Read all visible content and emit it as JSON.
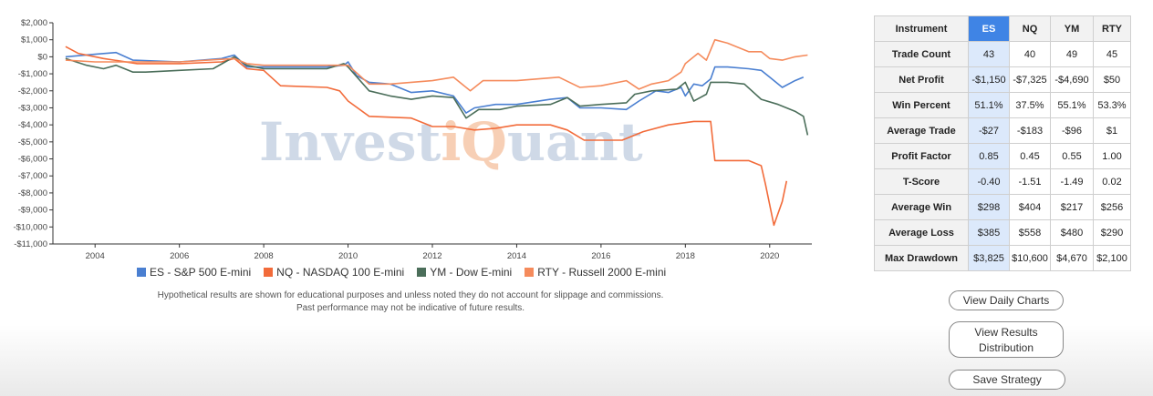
{
  "chart_data": {
    "type": "line",
    "title": "",
    "xlabel": "",
    "ylabel": "",
    "xlim": [
      2003.0,
      2021.0
    ],
    "ylim": [
      -11000,
      2000
    ],
    "x_ticks": [
      2004,
      2006,
      2008,
      2010,
      2012,
      2014,
      2016,
      2018,
      2020
    ],
    "y_ticks": [
      2000,
      1000,
      0,
      -1000,
      -2000,
      -3000,
      -4000,
      -5000,
      -6000,
      -7000,
      -8000,
      -9000,
      -10000,
      -11000
    ],
    "y_tick_labels": [
      "$2,000",
      "$1,000",
      "$0",
      "-$1,000",
      "-$2,000",
      "-$3,000",
      "-$4,000",
      "-$5,000",
      "-$6,000",
      "-$7,000",
      "-$8,000",
      "-$9,000",
      "-$10,000",
      "-$11,000"
    ],
    "x_tick_labels": [
      "2004",
      "2006",
      "2008",
      "2010",
      "2012",
      "2014",
      "2016",
      "2018",
      "2020"
    ],
    "legend_position": "bottom",
    "watermark": {
      "left": "Invest",
      "accent": "iQ",
      "right": "uant"
    },
    "series": [
      {
        "name": "ES - S&P 500 E-mini",
        "color": "#4a7fd1",
        "points": [
          [
            2003.3,
            0
          ],
          [
            2004.0,
            150
          ],
          [
            2004.5,
            250
          ],
          [
            2004.9,
            -200
          ],
          [
            2006.0,
            -300
          ],
          [
            2007.0,
            -100
          ],
          [
            2007.3,
            100
          ],
          [
            2007.6,
            -600
          ],
          [
            2009.5,
            -600
          ],
          [
            2009.9,
            -500
          ],
          [
            2010.0,
            -300
          ],
          [
            2010.2,
            -1100
          ],
          [
            2010.5,
            -1500
          ],
          [
            2011.0,
            -1600
          ],
          [
            2011.5,
            -2100
          ],
          [
            2012.0,
            -2000
          ],
          [
            2012.5,
            -2300
          ],
          [
            2012.8,
            -3300
          ],
          [
            2013.0,
            -3000
          ],
          [
            2013.5,
            -2800
          ],
          [
            2014.0,
            -2800
          ],
          [
            2014.8,
            -2500
          ],
          [
            2015.2,
            -2400
          ],
          [
            2015.5,
            -3000
          ],
          [
            2016.0,
            -3000
          ],
          [
            2016.6,
            -3100
          ],
          [
            2016.9,
            -2600
          ],
          [
            2017.3,
            -2000
          ],
          [
            2017.6,
            -2100
          ],
          [
            2017.9,
            -1800
          ],
          [
            2018.0,
            -2300
          ],
          [
            2018.2,
            -1600
          ],
          [
            2018.4,
            -1700
          ],
          [
            2018.6,
            -1300
          ],
          [
            2018.7,
            -600
          ],
          [
            2019.0,
            -600
          ],
          [
            2019.5,
            -700
          ],
          [
            2019.8,
            -800
          ],
          [
            2020.0,
            -1200
          ],
          [
            2020.3,
            -1800
          ],
          [
            2020.6,
            -1400
          ],
          [
            2020.8,
            -1200
          ]
        ]
      },
      {
        "name": "NQ - NASDAQ 100 E-mini",
        "color": "#f26b3a",
        "points": [
          [
            2003.3,
            600
          ],
          [
            2003.6,
            200
          ],
          [
            2004.2,
            -100
          ],
          [
            2005.0,
            -400
          ],
          [
            2006.0,
            -400
          ],
          [
            2007.0,
            -300
          ],
          [
            2007.3,
            -100
          ],
          [
            2007.6,
            -700
          ],
          [
            2008.0,
            -800
          ],
          [
            2008.4,
            -1700
          ],
          [
            2009.5,
            -1800
          ],
          [
            2009.8,
            -2000
          ],
          [
            2010.0,
            -2600
          ],
          [
            2010.5,
            -3500
          ],
          [
            2011.5,
            -3600
          ],
          [
            2012.0,
            -4100
          ],
          [
            2012.5,
            -4100
          ],
          [
            2013.0,
            -4300
          ],
          [
            2013.5,
            -4200
          ],
          [
            2014.0,
            -4000
          ],
          [
            2014.8,
            -4000
          ],
          [
            2015.2,
            -4300
          ],
          [
            2015.6,
            -4900
          ],
          [
            2016.5,
            -4900
          ],
          [
            2016.8,
            -4600
          ],
          [
            2017.0,
            -4400
          ],
          [
            2017.6,
            -4000
          ],
          [
            2018.2,
            -3800
          ],
          [
            2018.6,
            -3800
          ],
          [
            2018.7,
            -6100
          ],
          [
            2019.5,
            -6100
          ],
          [
            2019.8,
            -6400
          ],
          [
            2019.9,
            -7500
          ],
          [
            2020.1,
            -9900
          ],
          [
            2020.3,
            -8500
          ],
          [
            2020.4,
            -7300
          ]
        ]
      },
      {
        "name": "YM - Dow E-mini",
        "color": "#4b6e5a",
        "points": [
          [
            2003.3,
            -100
          ],
          [
            2003.8,
            -500
          ],
          [
            2004.2,
            -700
          ],
          [
            2004.5,
            -500
          ],
          [
            2004.9,
            -900
          ],
          [
            2005.2,
            -900
          ],
          [
            2006.0,
            -800
          ],
          [
            2006.8,
            -700
          ],
          [
            2007.3,
            0
          ],
          [
            2007.6,
            -500
          ],
          [
            2008.0,
            -700
          ],
          [
            2009.5,
            -700
          ],
          [
            2009.9,
            -400
          ],
          [
            2010.0,
            -600
          ],
          [
            2010.5,
            -2000
          ],
          [
            2011.0,
            -2300
          ],
          [
            2011.5,
            -2500
          ],
          [
            2012.0,
            -2300
          ],
          [
            2012.5,
            -2400
          ],
          [
            2012.8,
            -3600
          ],
          [
            2013.1,
            -3100
          ],
          [
            2013.6,
            -3100
          ],
          [
            2014.0,
            -2900
          ],
          [
            2014.8,
            -2800
          ],
          [
            2015.2,
            -2400
          ],
          [
            2015.5,
            -2900
          ],
          [
            2016.0,
            -2800
          ],
          [
            2016.6,
            -2700
          ],
          [
            2016.8,
            -2200
          ],
          [
            2017.2,
            -2000
          ],
          [
            2017.8,
            -1900
          ],
          [
            2018.0,
            -1500
          ],
          [
            2018.2,
            -2600
          ],
          [
            2018.5,
            -2200
          ],
          [
            2018.6,
            -1500
          ],
          [
            2019.0,
            -1500
          ],
          [
            2019.4,
            -1600
          ],
          [
            2019.8,
            -2500
          ],
          [
            2020.2,
            -2800
          ],
          [
            2020.6,
            -3200
          ],
          [
            2020.8,
            -3500
          ],
          [
            2020.9,
            -4600
          ]
        ]
      },
      {
        "name": "RTY - Russell 2000 E-mini",
        "color": "#f58b5c",
        "points": [
          [
            2003.3,
            -200
          ],
          [
            2004.0,
            -300
          ],
          [
            2005.0,
            -300
          ],
          [
            2006.0,
            -300
          ],
          [
            2007.3,
            -100
          ],
          [
            2007.6,
            -400
          ],
          [
            2008.0,
            -500
          ],
          [
            2009.5,
            -500
          ],
          [
            2010.0,
            -500
          ],
          [
            2010.5,
            -1600
          ],
          [
            2011.0,
            -1600
          ],
          [
            2012.0,
            -1400
          ],
          [
            2012.5,
            -1200
          ],
          [
            2012.9,
            -2000
          ],
          [
            2013.2,
            -1400
          ],
          [
            2014.0,
            -1400
          ],
          [
            2015.0,
            -1200
          ],
          [
            2015.5,
            -1800
          ],
          [
            2016.0,
            -1700
          ],
          [
            2016.6,
            -1400
          ],
          [
            2016.9,
            -1900
          ],
          [
            2017.2,
            -1600
          ],
          [
            2017.6,
            -1400
          ],
          [
            2017.9,
            -900
          ],
          [
            2018.0,
            -400
          ],
          [
            2018.3,
            200
          ],
          [
            2018.5,
            -200
          ],
          [
            2018.7,
            1000
          ],
          [
            2019.0,
            800
          ],
          [
            2019.5,
            300
          ],
          [
            2019.8,
            300
          ],
          [
            2020.0,
            -100
          ],
          [
            2020.3,
            -200
          ],
          [
            2020.6,
            0
          ],
          [
            2020.9,
            100
          ]
        ]
      }
    ]
  },
  "legend": [
    {
      "label": "ES - S&P 500 E-mini",
      "color": "#4a7fd1"
    },
    {
      "label": "NQ - NASDAQ 100 E-mini",
      "color": "#f26b3a"
    },
    {
      "label": "YM - Dow E-mini",
      "color": "#4b6e5a"
    },
    {
      "label": "RTY - Russell 2000 E-mini",
      "color": "#f58b5c"
    }
  ],
  "disclaimer": {
    "line1": "Hypothetical results are shown for educational purposes and unless noted they do not account for slippage and commissions.",
    "line2": "Past performance may not be indicative of future results."
  },
  "table": {
    "header": [
      "Instrument",
      "ES",
      "NQ",
      "YM",
      "RTY"
    ],
    "active_column": "ES",
    "rows": [
      {
        "label": "Trade Count",
        "values": [
          "43",
          "40",
          "49",
          "45"
        ]
      },
      {
        "label": "Net Profit",
        "values": [
          "-$1,150",
          "-$7,325",
          "-$4,690",
          "$50"
        ]
      },
      {
        "label": "Win Percent",
        "values": [
          "51.1%",
          "37.5%",
          "55.1%",
          "53.3%"
        ]
      },
      {
        "label": "Average Trade",
        "values": [
          "-$27",
          "-$183",
          "-$96",
          "$1"
        ]
      },
      {
        "label": "Profit Factor",
        "values": [
          "0.85",
          "0.45",
          "0.55",
          "1.00"
        ]
      },
      {
        "label": "T-Score",
        "values": [
          "-0.40",
          "-1.51",
          "-1.49",
          "0.02"
        ]
      },
      {
        "label": "Average Win",
        "values": [
          "$298",
          "$404",
          "$217",
          "$256"
        ]
      },
      {
        "label": "Average Loss",
        "values": [
          "$385",
          "$558",
          "$480",
          "$290"
        ]
      },
      {
        "label": "Max Drawdown",
        "values": [
          "$3,825",
          "$10,600",
          "$4,670",
          "$2,100"
        ]
      }
    ]
  },
  "buttons": {
    "daily": "View Daily Charts",
    "dist_line1": "View Results",
    "dist_line2": "Distribution",
    "save": "Save Strategy"
  }
}
